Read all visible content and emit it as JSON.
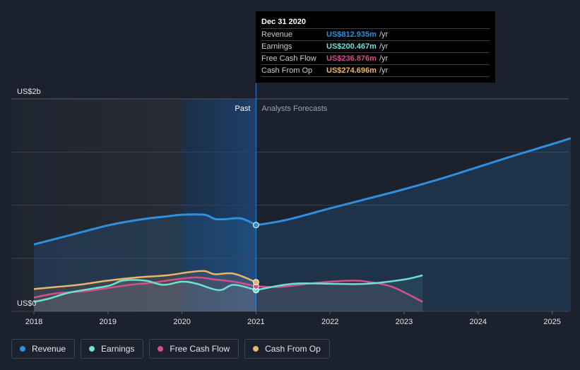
{
  "chart_data": {
    "type": "line",
    "y_unit_top": "US$2b",
    "y_unit_bottom": "US$0",
    "ylim": [
      0,
      2000
    ],
    "xlim": [
      2018,
      2025.25
    ],
    "x_ticks": [
      "2018",
      "2019",
      "2020",
      "2021",
      "2022",
      "2023",
      "2024",
      "2025"
    ],
    "past_label": "Past",
    "forecast_label": "Analysts Forecasts",
    "grid": true,
    "series": [
      {
        "name": "Revenue",
        "color": "#2f8fdf",
        "points": [
          [
            2018.0,
            630
          ],
          [
            2018.5,
            720
          ],
          [
            2019.0,
            810
          ],
          [
            2019.3,
            850
          ],
          [
            2019.6,
            880
          ],
          [
            2019.8,
            895
          ],
          [
            2020.0,
            910
          ],
          [
            2020.3,
            910
          ],
          [
            2020.45,
            870
          ],
          [
            2020.6,
            870
          ],
          [
            2020.8,
            875
          ],
          [
            2021.0,
            812.935
          ]
        ],
        "forecast": [
          [
            2021.0,
            812.935
          ],
          [
            2021.4,
            860
          ],
          [
            2022.0,
            970
          ],
          [
            2022.5,
            1060
          ],
          [
            2023.0,
            1150
          ],
          [
            2023.5,
            1250
          ],
          [
            2024.0,
            1360
          ],
          [
            2024.5,
            1470
          ],
          [
            2025.0,
            1575
          ],
          [
            2025.25,
            1630
          ]
        ]
      },
      {
        "name": "Earnings",
        "color": "#6ee0d3",
        "points": [
          [
            2018.0,
            90
          ],
          [
            2018.2,
            120
          ],
          [
            2018.5,
            180
          ],
          [
            2019.0,
            240
          ],
          [
            2019.2,
            290
          ],
          [
            2019.5,
            290
          ],
          [
            2019.75,
            250
          ],
          [
            2020.0,
            280
          ],
          [
            2020.2,
            260
          ],
          [
            2020.5,
            200
          ],
          [
            2020.7,
            250
          ],
          [
            2021.0,
            200.467
          ]
        ],
        "forecast": [
          [
            2021.0,
            200.467
          ],
          [
            2021.5,
            260
          ],
          [
            2022.0,
            260
          ],
          [
            2022.5,
            260
          ],
          [
            2023.0,
            300
          ],
          [
            2023.25,
            340
          ]
        ]
      },
      {
        "name": "Free Cash Flow",
        "color": "#d0508c",
        "points": [
          [
            2018.0,
            130
          ],
          [
            2018.3,
            170
          ],
          [
            2018.7,
            190
          ],
          [
            2019.0,
            220
          ],
          [
            2019.3,
            250
          ],
          [
            2019.6,
            270
          ],
          [
            2019.9,
            300
          ],
          [
            2020.2,
            320
          ],
          [
            2020.45,
            300
          ],
          [
            2020.7,
            280
          ],
          [
            2021.0,
            236.876
          ]
        ],
        "forecast": [
          [
            2021.0,
            236.876
          ],
          [
            2021.3,
            230
          ],
          [
            2021.7,
            260
          ],
          [
            2022.0,
            280
          ],
          [
            2022.3,
            290
          ],
          [
            2022.5,
            280
          ],
          [
            2022.8,
            240
          ],
          [
            2023.0,
            180
          ],
          [
            2023.25,
            90
          ]
        ]
      },
      {
        "name": "Cash From Op",
        "color": "#e9b56a",
        "points": [
          [
            2018.0,
            210
          ],
          [
            2018.3,
            230
          ],
          [
            2018.6,
            250
          ],
          [
            2019.0,
            290
          ],
          [
            2019.4,
            320
          ],
          [
            2019.8,
            340
          ],
          [
            2020.1,
            370
          ],
          [
            2020.3,
            380
          ],
          [
            2020.45,
            350
          ],
          [
            2020.7,
            355
          ],
          [
            2021.0,
            274.696
          ]
        ],
        "forecast": []
      }
    ]
  },
  "tooltip": {
    "title": "Dec 31 2020",
    "rows": [
      {
        "name": "Revenue",
        "value": "US$812.935m",
        "unit": "/yr",
        "color": "#2f8fdf"
      },
      {
        "name": "Earnings",
        "value": "US$200.467m",
        "unit": "/yr",
        "color": "#6ee0d3"
      },
      {
        "name": "Free Cash Flow",
        "value": "US$236.876m",
        "unit": "/yr",
        "color": "#d0508c"
      },
      {
        "name": "Cash From Op",
        "value": "US$274.696m",
        "unit": "/yr",
        "color": "#e9b56a"
      }
    ]
  },
  "legend": [
    {
      "label": "Revenue",
      "color": "#2f8fdf"
    },
    {
      "label": "Earnings",
      "color": "#6ee0d3"
    },
    {
      "label": "Free Cash Flow",
      "color": "#d0508c"
    },
    {
      "label": "Cash From Op",
      "color": "#e9b56a"
    }
  ]
}
